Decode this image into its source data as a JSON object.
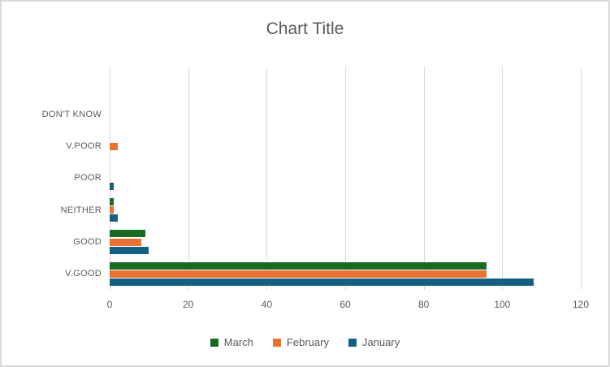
{
  "window": {
    "background_color": "#FFFFFF",
    "border_color": "#D9D9D9",
    "text_color": "#595959"
  },
  "chart_data": {
    "type": "bar",
    "orientation": "horizontal",
    "title": "Chart Title",
    "categories": [
      "DON'T KNOW",
      "V.POOR",
      "POOR",
      "NEITHER",
      "GOOD",
      "V.GOOD"
    ],
    "category_order": "top-to-bottom",
    "series": [
      {
        "name": "March",
        "color": "#196B24",
        "values": [
          0,
          0,
          0,
          1,
          9,
          96
        ]
      },
      {
        "name": "February",
        "color": "#E97132",
        "values": [
          0,
          2,
          0,
          1,
          8,
          96
        ]
      },
      {
        "name": "January",
        "color": "#156082",
        "values": [
          0,
          0,
          1,
          2,
          10,
          108
        ]
      }
    ],
    "x_axis": {
      "min": 0,
      "max": 120,
      "tick_interval": 20,
      "tick_labels": [
        "0",
        "20",
        "40",
        "60",
        "80",
        "100",
        "120"
      ]
    },
    "grid": true,
    "gridline_color": "#D9D9D9",
    "axis_line_color": "#D9D9D9",
    "legend": {
      "position": "bottom",
      "entries": [
        "March",
        "February",
        "January"
      ]
    },
    "layout_hints": {
      "leading_empty_band": true,
      "series_stacking_in_band": "March top, February middle, January bottom"
    }
  }
}
